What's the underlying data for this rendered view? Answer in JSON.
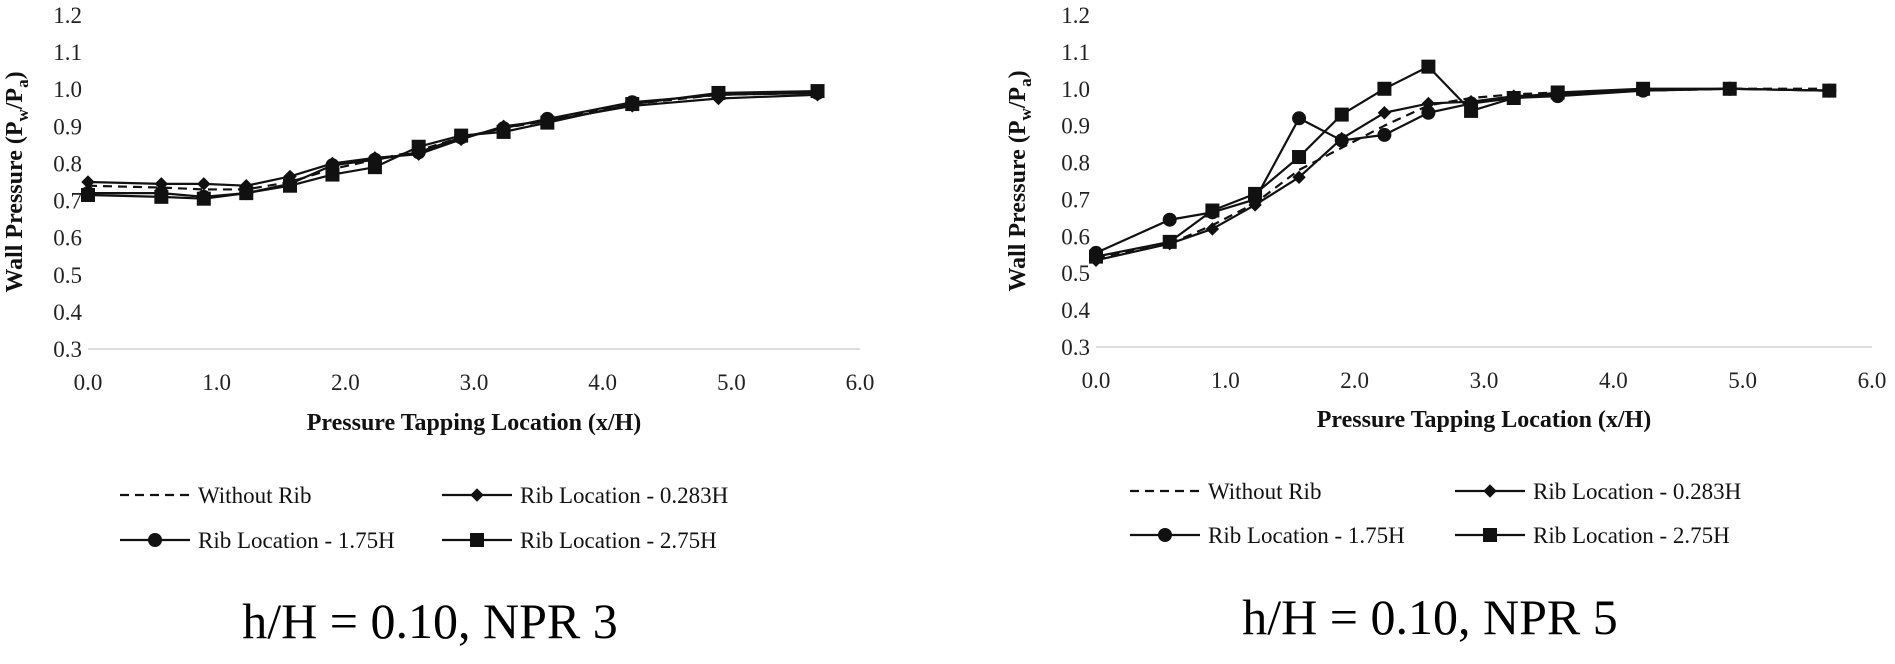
{
  "chart_data": [
    {
      "type": "line",
      "caption": "h/H = 0.10, NPR 3",
      "title": "",
      "xlabel": "Pressure Tapping Location (x/H)",
      "ylabel_main": "Wall Pressure (P",
      "ylabel_sub1": "w",
      "ylabel_mid": "/P",
      "ylabel_sub2": "a",
      "ylabel_end": ")",
      "xlim": [
        0,
        6
      ],
      "ylim": [
        0.3,
        1.2
      ],
      "xticks": [
        "0.0",
        "1.0",
        "2.0",
        "3.0",
        "4.0",
        "5.0",
        "6.0"
      ],
      "yticks": [
        "0.3",
        "0.4",
        "0.5",
        "0.6",
        "0.7",
        "0.8",
        "0.9",
        "1.0",
        "1.1",
        "1.2"
      ],
      "series": [
        {
          "name": "Without Rib",
          "marker": "none",
          "dash": true,
          "x": [
            0,
            0.57,
            0.9,
            1.23,
            1.57,
            1.9,
            2.23,
            2.57,
            2.9,
            3.23,
            3.57,
            4.23,
            4.9,
            5.67
          ],
          "y": [
            0.74,
            0.735,
            0.73,
            0.73,
            0.75,
            0.785,
            0.81,
            0.835,
            0.87,
            0.895,
            0.915,
            0.96,
            0.985,
            0.99
          ]
        },
        {
          "name": "Rib Location - 0.283H",
          "marker": "diamond",
          "dash": false,
          "x": [
            0,
            0.57,
            0.9,
            1.23,
            1.57,
            1.9,
            2.23,
            2.57,
            2.9,
            3.23,
            3.57,
            4.23,
            4.9,
            5.67
          ],
          "y": [
            0.75,
            0.745,
            0.745,
            0.74,
            0.765,
            0.8,
            0.815,
            0.825,
            0.865,
            0.9,
            0.915,
            0.955,
            0.975,
            0.985
          ]
        },
        {
          "name": "Rib Location - 1.75H",
          "marker": "circle",
          "dash": false,
          "x": [
            0,
            0.57,
            0.9,
            1.23,
            1.57,
            1.9,
            2.23,
            2.57,
            2.9,
            3.23,
            3.57,
            4.23,
            4.9,
            5.67
          ],
          "y": [
            0.72,
            0.72,
            0.71,
            0.72,
            0.745,
            0.795,
            0.81,
            0.83,
            0.87,
            0.895,
            0.92,
            0.965,
            0.985,
            0.99
          ]
        },
        {
          "name": "Rib Location - 2.75H",
          "marker": "square",
          "dash": false,
          "x": [
            0,
            0.57,
            0.9,
            1.23,
            1.57,
            1.9,
            2.23,
            2.57,
            2.9,
            3.23,
            3.57,
            4.23,
            4.9,
            5.67
          ],
          "y": [
            0.715,
            0.71,
            0.705,
            0.72,
            0.74,
            0.77,
            0.79,
            0.845,
            0.875,
            0.885,
            0.91,
            0.96,
            0.99,
            0.995
          ]
        }
      ]
    },
    {
      "type": "line",
      "caption": "h/H = 0.10, NPR 5",
      "title": "",
      "xlabel": "Pressure Tapping Location (x/H)",
      "ylabel_main": "Wall Pressure (P",
      "ylabel_sub1": "w",
      "ylabel_mid": "/P",
      "ylabel_sub2": "a",
      "ylabel_end": ")",
      "xlim": [
        0,
        6
      ],
      "ylim": [
        0.3,
        1.2
      ],
      "xticks": [
        "0.0",
        "1.0",
        "2.0",
        "3.0",
        "4.0",
        "5.0",
        "6.0"
      ],
      "yticks": [
        "0.3",
        "0.4",
        "0.5",
        "0.6",
        "0.7",
        "0.8",
        "0.9",
        "1.0",
        "1.1",
        "1.2"
      ],
      "series": [
        {
          "name": "Without Rib",
          "marker": "none",
          "dash": true,
          "x": [
            0,
            0.57,
            0.9,
            1.23,
            1.57,
            1.9,
            2.23,
            2.57,
            2.9,
            3.23,
            3.57,
            4.23,
            4.9,
            5.67
          ],
          "y": [
            0.54,
            0.58,
            0.63,
            0.69,
            0.78,
            0.84,
            0.9,
            0.955,
            0.975,
            0.985,
            0.99,
            0.995,
            1.0,
            1.0
          ]
        },
        {
          "name": "Rib Location - 0.283H",
          "marker": "diamond",
          "dash": false,
          "x": [
            0,
            0.57,
            0.9,
            1.23,
            1.57,
            1.9,
            2.23,
            2.57,
            2.9,
            3.23,
            3.57,
            4.23,
            4.9,
            5.67
          ],
          "y": [
            0.535,
            0.58,
            0.62,
            0.685,
            0.76,
            0.865,
            0.935,
            0.96,
            0.965,
            0.98,
            0.985,
            0.995,
            1.0,
            0.995
          ]
        },
        {
          "name": "Rib Location - 1.75H",
          "marker": "circle",
          "dash": false,
          "x": [
            0,
            0.57,
            0.9,
            1.23,
            1.57,
            1.9,
            2.23,
            2.57,
            2.9,
            3.23,
            3.57,
            4.23,
            4.9,
            5.67
          ],
          "y": [
            0.555,
            0.645,
            0.665,
            0.7,
            0.92,
            0.86,
            0.875,
            0.935,
            0.96,
            0.975,
            0.98,
            0.995,
            1.0,
            0.995
          ]
        },
        {
          "name": "Rib Location - 2.75H",
          "marker": "square",
          "dash": false,
          "x": [
            0,
            0.57,
            0.9,
            1.23,
            1.57,
            1.9,
            2.23,
            2.57,
            2.9,
            3.23,
            3.57,
            4.23,
            4.9,
            5.67
          ],
          "y": [
            0.545,
            0.585,
            0.67,
            0.715,
            0.815,
            0.93,
            1.0,
            1.06,
            0.94,
            0.975,
            0.99,
            1.0,
            1.0,
            0.995
          ]
        }
      ]
    }
  ]
}
